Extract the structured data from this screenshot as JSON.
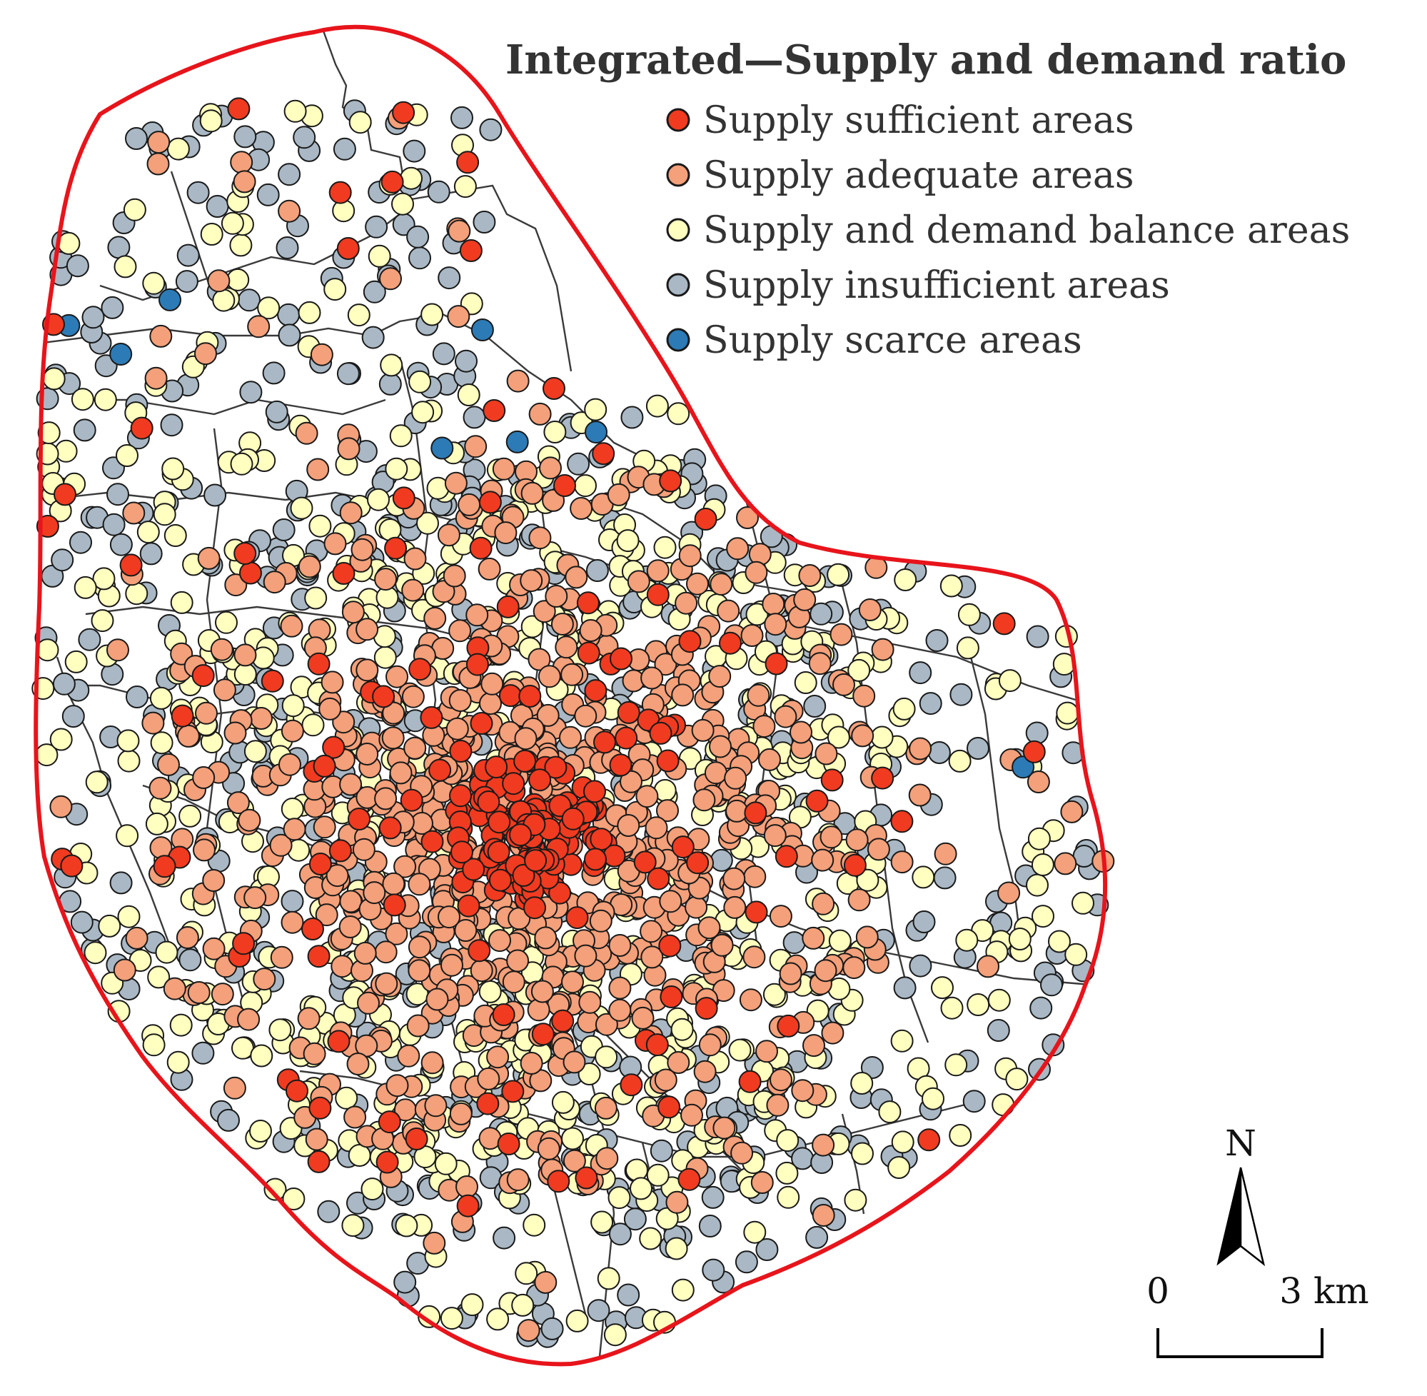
{
  "title": "Integrated—Supply and demand ratio",
  "legend": {
    "items": [
      {
        "key": "sufficient",
        "label": "Supply sufficient areas",
        "color": "#f03b20"
      },
      {
        "key": "adequate",
        "label": "Supply adequate areas",
        "color": "#f4a07a"
      },
      {
        "key": "balance",
        "label": "Supply and demand balance areas",
        "color": "#ffffc0"
      },
      {
        "key": "insufficient",
        "label": "Supply insufficient areas",
        "color": "#a9b8c4"
      },
      {
        "key": "scarce",
        "label": "Supply scarce areas",
        "color": "#2c7bb6"
      }
    ]
  },
  "north_arrow": {
    "label": "N"
  },
  "scale_bar": {
    "start_label": "0",
    "end_label": "3 km"
  },
  "colors": {
    "boundary": "#e8141b",
    "district_lines": "#3a3a3a",
    "point_outline": "#1a1a1a"
  }
}
